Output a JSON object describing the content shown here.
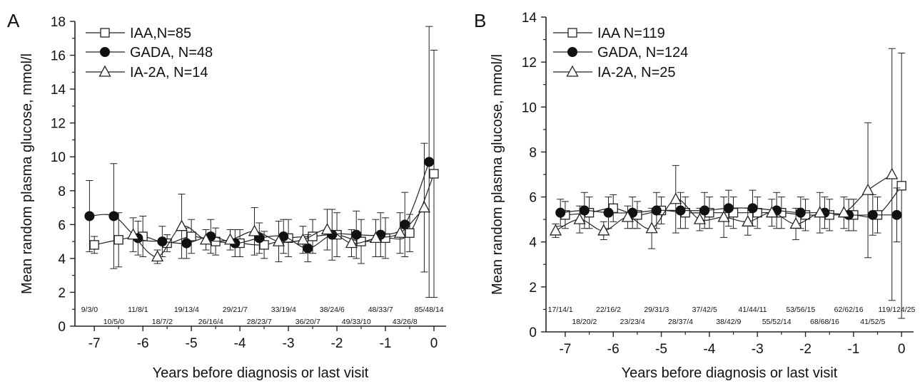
{
  "chart_data": [
    {
      "type": "line",
      "panel_label": "A",
      "xlabel": "Years before diagnosis or last visit",
      "ylabel": "Mean random plasma glucose, mmol/l",
      "xlim": [
        -7.4,
        0.25
      ],
      "ylim": [
        0,
        18
      ],
      "xticks": [
        -7,
        -6,
        -5,
        -4,
        -3,
        -2,
        -1,
        0
      ],
      "yticks": [
        0,
        2,
        4,
        6,
        8,
        10,
        12,
        14,
        16,
        18
      ],
      "legend_position": "top-left",
      "series": [
        {
          "name": "IAA,N=85",
          "marker": "square-open",
          "x": [
            -7.0,
            -6.5,
            -6.0,
            -5.5,
            -5.0,
            -4.5,
            -4.0,
            -3.5,
            -3.0,
            -2.5,
            -2.0,
            -1.5,
            -1.0,
            -0.5,
            0.0
          ],
          "y": [
            4.8,
            5.1,
            5.3,
            4.9,
            5.3,
            5.0,
            4.9,
            4.8,
            5.2,
            5.3,
            5.4,
            5.0,
            5.2,
            5.5,
            9.0
          ],
          "err": [
            0.5,
            1.6,
            1.2,
            0.5,
            1.0,
            0.8,
            0.8,
            0.8,
            1.1,
            1.0,
            1.3,
            1.3,
            1.2,
            1.1,
            7.3
          ]
        },
        {
          "name": "GADA, N=48",
          "marker": "circle-filled",
          "x": [
            -7.1,
            -6.6,
            -6.1,
            -5.6,
            -5.1,
            -4.6,
            -4.1,
            -3.6,
            -3.1,
            -2.6,
            -2.1,
            -1.6,
            -1.1,
            -0.6,
            -0.1
          ],
          "y": [
            6.5,
            6.5,
            5.2,
            5.0,
            4.9,
            5.3,
            4.9,
            5.2,
            5.3,
            4.6,
            5.4,
            5.4,
            5.4,
            6.0,
            9.7
          ],
          "err": [
            2.1,
            3.1,
            1.0,
            0.9,
            0.9,
            1.0,
            0.8,
            0.9,
            1.0,
            0.8,
            1.5,
            1.4,
            1.3,
            1.9,
            8.0
          ]
        },
        {
          "name": "IA-2A, N=14",
          "marker": "triangle-open",
          "x": [
            -6.2,
            -5.7,
            -5.2,
            -4.7,
            -4.2,
            -3.7,
            -3.2,
            -2.7,
            -2.2,
            -1.7,
            -1.2,
            -0.7,
            -0.2
          ],
          "y": [
            5.4,
            4.1,
            5.9,
            5.1,
            5.1,
            5.6,
            5.0,
            5.1,
            5.7,
            4.9,
            5.2,
            5.5,
            7.0
          ],
          "err": [
            1.0,
            0.4,
            1.9,
            0.6,
            0.6,
            1.4,
            1.2,
            0.8,
            1.2,
            0.8,
            1.1,
            1.2,
            3.8
          ]
        }
      ],
      "annotations": [
        {
          "text": "9/3/0",
          "x": -7.1,
          "row": 1
        },
        {
          "text": "10/5/0",
          "x": -6.6,
          "row": 2
        },
        {
          "text": "11/8/1",
          "x": -6.1,
          "row": 1
        },
        {
          "text": "18/7/2",
          "x": -5.6,
          "row": 2
        },
        {
          "text": "19/13/4",
          "x": -5.1,
          "row": 1
        },
        {
          "text": "26/16/4",
          "x": -4.6,
          "row": 2
        },
        {
          "text": "29/21/7",
          "x": -4.1,
          "row": 1
        },
        {
          "text": "28/23/7",
          "x": -3.6,
          "row": 2
        },
        {
          "text": "33/19/4",
          "x": -3.1,
          "row": 1
        },
        {
          "text": "36/20/7",
          "x": -2.6,
          "row": 2
        },
        {
          "text": "38/24/6",
          "x": -2.1,
          "row": 1
        },
        {
          "text": "49/33/10",
          "x": -1.6,
          "row": 2
        },
        {
          "text": "48/33/7",
          "x": -1.1,
          "row": 1
        },
        {
          "text": "43/26/8",
          "x": -0.6,
          "row": 2
        },
        {
          "text": "85/48/14",
          "x": -0.1,
          "row": 1
        }
      ]
    },
    {
      "type": "line",
      "panel_label": "B",
      "xlabel": "Years before diagnosis or last visit",
      "ylabel": "Mean random plasma glucose, mmol/l",
      "xlim": [
        -7.4,
        0.25
      ],
      "ylim": [
        0,
        14
      ],
      "xticks": [
        -7,
        -6,
        -5,
        -4,
        -3,
        -2,
        -1,
        0
      ],
      "yticks": [
        0,
        2,
        4,
        6,
        8,
        10,
        12,
        14
      ],
      "legend_position": "top-left",
      "series": [
        {
          "name": "IAA N=119",
          "marker": "square-open",
          "x": [
            -7.0,
            -6.5,
            -6.0,
            -5.5,
            -5.0,
            -4.5,
            -4.0,
            -3.5,
            -3.0,
            -2.5,
            -2.0,
            -1.5,
            -1.0,
            -0.5,
            0.0
          ],
          "y": [
            5.2,
            5.3,
            5.5,
            5.2,
            5.4,
            5.3,
            5.3,
            5.3,
            5.3,
            5.3,
            5.2,
            5.2,
            5.2,
            5.2,
            6.5
          ],
          "err": [
            0.6,
            0.7,
            0.6,
            0.6,
            0.6,
            0.7,
            0.7,
            0.7,
            0.7,
            0.7,
            0.7,
            0.7,
            0.7,
            0.8,
            5.9
          ]
        },
        {
          "name": "GADA, N=124",
          "marker": "circle-filled",
          "x": [
            -7.1,
            -6.6,
            -6.1,
            -5.6,
            -5.1,
            -4.6,
            -4.1,
            -3.6,
            -3.1,
            -2.6,
            -2.1,
            -1.6,
            -1.1,
            -0.6,
            -0.1
          ],
          "y": [
            5.3,
            5.4,
            5.3,
            5.3,
            5.4,
            5.4,
            5.4,
            5.5,
            5.5,
            5.4,
            5.3,
            5.3,
            5.2,
            5.2,
            5.2
          ],
          "err": [
            0.6,
            0.8,
            0.7,
            0.7,
            0.8,
            0.8,
            0.8,
            0.8,
            0.8,
            0.8,
            0.7,
            0.7,
            0.7,
            0.9,
            1.2
          ]
        },
        {
          "name": "IA-2A, N=25",
          "marker": "triangle-open",
          "x": [
            -7.2,
            -6.7,
            -6.2,
            -5.7,
            -5.2,
            -4.7,
            -4.2,
            -3.7,
            -3.2,
            -2.7,
            -2.2,
            -1.7,
            -1.2,
            -0.7,
            -0.2
          ],
          "y": [
            4.5,
            5.0,
            4.5,
            5.1,
            4.6,
            5.9,
            5.0,
            5.1,
            4.9,
            5.3,
            4.8,
            5.3,
            5.3,
            6.3,
            7.0
          ],
          "err": [
            0.3,
            0.6,
            0.4,
            0.5,
            0.9,
            1.5,
            0.5,
            0.9,
            0.6,
            0.6,
            0.7,
            0.9,
            0.7,
            3.0,
            5.6
          ]
        }
      ],
      "annotations": [
        {
          "text": "17/14/1",
          "x": -7.1,
          "row": 1
        },
        {
          "text": "18/20/2",
          "x": -6.6,
          "row": 2
        },
        {
          "text": "22/16/2",
          "x": -6.1,
          "row": 1
        },
        {
          "text": "23/23/4",
          "x": -5.6,
          "row": 2
        },
        {
          "text": "29/31/3",
          "x": -5.1,
          "row": 1
        },
        {
          "text": "28/37/4",
          "x": -4.6,
          "row": 2
        },
        {
          "text": "37/42/5",
          "x": -4.1,
          "row": 1
        },
        {
          "text": "38/42/9",
          "x": -3.6,
          "row": 2
        },
        {
          "text": "41/44/11",
          "x": -3.1,
          "row": 1
        },
        {
          "text": "55/52/14",
          "x": -2.6,
          "row": 2
        },
        {
          "text": "53/56/15",
          "x": -2.1,
          "row": 1
        },
        {
          "text": "68/68/16",
          "x": -1.6,
          "row": 2
        },
        {
          "text": "62/62/16",
          "x": -1.1,
          "row": 1
        },
        {
          "text": "41/52/5",
          "x": -0.6,
          "row": 2
        },
        {
          "text": "119/124/25",
          "x": -0.1,
          "row": 1
        }
      ]
    }
  ]
}
